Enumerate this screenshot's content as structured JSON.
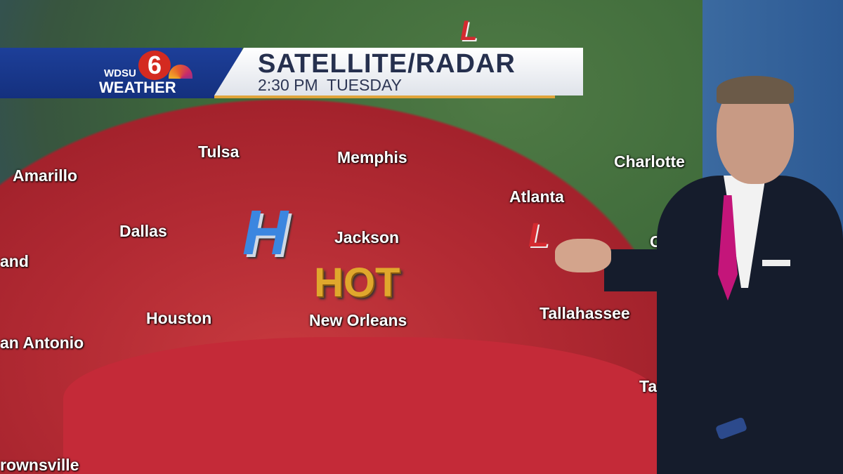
{
  "banner": {
    "station_logo": {
      "call_sign": "WDSU",
      "channel": "6",
      "product": "WEATHER"
    },
    "title": "SATELLITE/RADAR",
    "subtitle": "2:30 PM  TUESDAY"
  },
  "map": {
    "cities": [
      "Tulsa",
      "Memphis",
      "Charlotte",
      "Amarillo",
      "Atlanta",
      "Dallas",
      "Jackson",
      "and",
      "Cha",
      "Houston",
      "New Orleans",
      "Tallahassee",
      "an Antonio",
      "Tar",
      "rownsville"
    ],
    "pressure_labels": {
      "high": "H",
      "low_north": "L",
      "low_southeast": "L"
    },
    "callout": "HOT",
    "colors": {
      "hot_zone": "#b22a33",
      "high": "#3b86e0",
      "low": "#d42a30",
      "hot_text": "#e0a72c"
    }
  }
}
